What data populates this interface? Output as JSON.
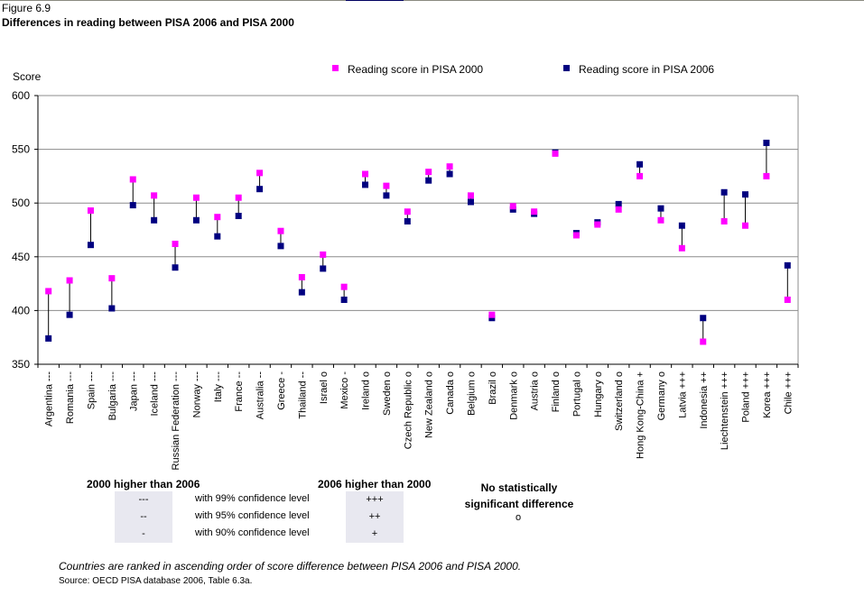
{
  "figure": {
    "label": "Figure 6.9",
    "title": "Differences in reading between PISA 2006 and PISA 2000"
  },
  "colors": {
    "pisa2000": "#ff00ff",
    "pisa2006": "#000080",
    "gridline": "#8c8c8c",
    "shade": "#e8e8f0"
  },
  "chart_data": {
    "type": "scatter",
    "title": "Differences in reading between PISA 2006 and PISA 2000",
    "xlabel": "",
    "ylabel": "Score",
    "ylim": [
      350,
      600
    ],
    "yticks": [
      350,
      400,
      450,
      500,
      550,
      600
    ],
    "grid": true,
    "legend_position": "top",
    "categories": [
      "Argentina ---",
      "Romania ---",
      "Spain ---",
      "Bulgaria ---",
      "Japan ---",
      "Iceland ---",
      "Russian Federation ---",
      "Norway ---",
      "Italy ---",
      "France --",
      "Australia --",
      "Greece -",
      "Thailand --",
      "Israel o",
      "Mexico -",
      "Ireland o",
      "Sweden o",
      "Czech Republic o",
      "New Zealand o",
      "Canada o",
      "Belgium o",
      "Brazil o",
      "Denmark o",
      "Austria o",
      "Finland o",
      "Portugal o",
      "Hungary o",
      "Switzerland o",
      "Hong Kong-China +",
      "Germany o",
      "Latvia +++",
      "Indonesia ++",
      "Liechtenstein +++",
      "Poland +++",
      "Korea +++",
      "Chile +++"
    ],
    "series": [
      {
        "name": "Reading score in PISA 2000",
        "color": "#ff00ff",
        "values": [
          418,
          428,
          493,
          430,
          522,
          507,
          462,
          505,
          487,
          505,
          528,
          474,
          431,
          452,
          422,
          527,
          516,
          492,
          529,
          534,
          507,
          396,
          497,
          492,
          546,
          470,
          480,
          494,
          525,
          484,
          458,
          371,
          483,
          479,
          525,
          410
        ]
      },
      {
        "name": "Reading score in PISA 2006",
        "color": "#000080",
        "values": [
          374,
          396,
          461,
          402,
          498,
          484,
          440,
          484,
          469,
          488,
          513,
          460,
          417,
          439,
          410,
          517,
          507,
          483,
          521,
          527,
          501,
          393,
          494,
          490,
          547,
          472,
          482,
          499,
          536,
          495,
          479,
          393,
          510,
          508,
          556,
          442
        ]
      }
    ]
  },
  "legend_table": {
    "header_2000_higher": "2000 higher than 2006",
    "header_2006_higher": "2006 higher than 2000",
    "header_nsd_line1": "No statistically",
    "header_nsd_line2": "significant difference",
    "rows": [
      {
        "minus": "---",
        "label": "with 99% confidence level",
        "plus": "+++"
      },
      {
        "minus": "--",
        "label": "with 95% confidence level",
        "plus": "++"
      },
      {
        "minus": "-",
        "label": "with 90% confidence level",
        "plus": "+"
      }
    ],
    "nsd_symbol": "o"
  },
  "note": "Countries are ranked in ascending order of score difference between PISA 2006 and PISA 2000.",
  "source": "Source: OECD PISA database 2006, Table 6.3a."
}
